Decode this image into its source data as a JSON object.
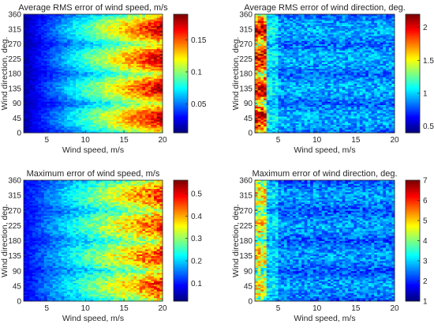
{
  "chart_data": [
    {
      "type": "heatmap",
      "title": "Average RMS error of wind speed, m/s",
      "xlabel": "Wind speed, m/s",
      "ylabel": "Wind direction, deg.",
      "xlim": [
        2,
        20
      ],
      "ylim": [
        0,
        360
      ],
      "xticks": [
        "5",
        "10",
        "15",
        "20"
      ],
      "yticks": [
        "0",
        "45",
        "90",
        "135",
        "180",
        "225",
        "270",
        "315",
        "360"
      ],
      "colorbar": {
        "range": [
          0.005,
          0.19
        ],
        "ticks": [
          "0.05",
          "0.1",
          "0.15"
        ],
        "tick_values": [
          0.05,
          0.1,
          0.15
        ]
      },
      "pattern": "increases with wind speed; maxima near 45, 135, 225, 315 deg",
      "samples": {
        "wind_speed": [
          3,
          6,
          10,
          14,
          17,
          20
        ],
        "dir_45": [
          0.02,
          0.05,
          0.09,
          0.12,
          0.15,
          0.18
        ],
        "dir_90": [
          0.01,
          0.03,
          0.05,
          0.07,
          0.09,
          0.1
        ]
      }
    },
    {
      "type": "heatmap",
      "title": "Average RMS error of wind direction, deg.",
      "xlabel": "Wind speed, m/s",
      "ylabel": "Wind direction, deg.",
      "xlim": [
        2,
        20
      ],
      "ylim": [
        0,
        360
      ],
      "xticks": [
        "5",
        "10",
        "15",
        "20"
      ],
      "yticks": [
        "0",
        "45",
        "90",
        "135",
        "180",
        "225",
        "270",
        "315",
        "360"
      ],
      "colorbar": {
        "range": [
          0.4,
          2.2
        ],
        "ticks": [
          "0.5",
          "1",
          "1.5",
          "2"
        ],
        "tick_values": [
          0.5,
          1,
          1.5,
          2
        ]
      },
      "pattern": "highest at lowest wind speed (~2-3 m/s), low elsewhere",
      "samples": {
        "wind_speed": [
          2.5,
          5,
          10,
          15,
          20
        ],
        "dir_135": [
          2.0,
          0.9,
          0.7,
          0.65,
          0.6
        ]
      }
    },
    {
      "type": "heatmap",
      "title": "Maximum error of wind speed, m/s",
      "xlabel": "Wind speed, m/s",
      "ylabel": "Wind direction, deg.",
      "xlim": [
        2,
        20
      ],
      "ylim": [
        0,
        360
      ],
      "xticks": [
        "5",
        "10",
        "15",
        "20"
      ],
      "yticks": [
        "0",
        "45",
        "90",
        "135",
        "180",
        "225",
        "270",
        "315",
        "360"
      ],
      "colorbar": {
        "range": [
          0.02,
          0.56
        ],
        "ticks": [
          "0.1",
          "0.2",
          "0.3",
          "0.4",
          "0.5"
        ],
        "tick_values": [
          0.1,
          0.2,
          0.3,
          0.4,
          0.5
        ]
      },
      "pattern": "increases with wind speed; maxima near 45, 135, 225, 315 deg",
      "samples": {
        "wind_speed": [
          3,
          6,
          10,
          14,
          17,
          20
        ],
        "dir_45": [
          0.08,
          0.15,
          0.22,
          0.3,
          0.36,
          0.42
        ],
        "dir_90": [
          0.05,
          0.1,
          0.15,
          0.18,
          0.22,
          0.25
        ]
      }
    },
    {
      "type": "heatmap",
      "title": "Maximum error of wind direction, deg.",
      "xlabel": "Wind speed, m/s",
      "ylabel": "Wind direction, deg.",
      "xlim": [
        2,
        20
      ],
      "ylim": [
        0,
        360
      ],
      "xticks": [
        "5",
        "10",
        "15",
        "20"
      ],
      "yticks": [
        "0",
        "45",
        "90",
        "135",
        "180",
        "225",
        "270",
        "315",
        "360"
      ],
      "colorbar": {
        "range": [
          1,
          7
        ],
        "ticks": [
          "1",
          "2",
          "3",
          "4",
          "5",
          "6",
          "7"
        ],
        "tick_values": [
          1,
          2,
          3,
          4,
          5,
          6,
          7
        ]
      },
      "pattern": "highest at lowest wind speed (~2-3 m/s), low elsewhere",
      "samples": {
        "wind_speed": [
          2.5,
          5,
          10,
          15,
          20
        ],
        "dir_135": [
          4.2,
          2.6,
          2.2,
          2.0,
          1.9
        ]
      }
    }
  ]
}
